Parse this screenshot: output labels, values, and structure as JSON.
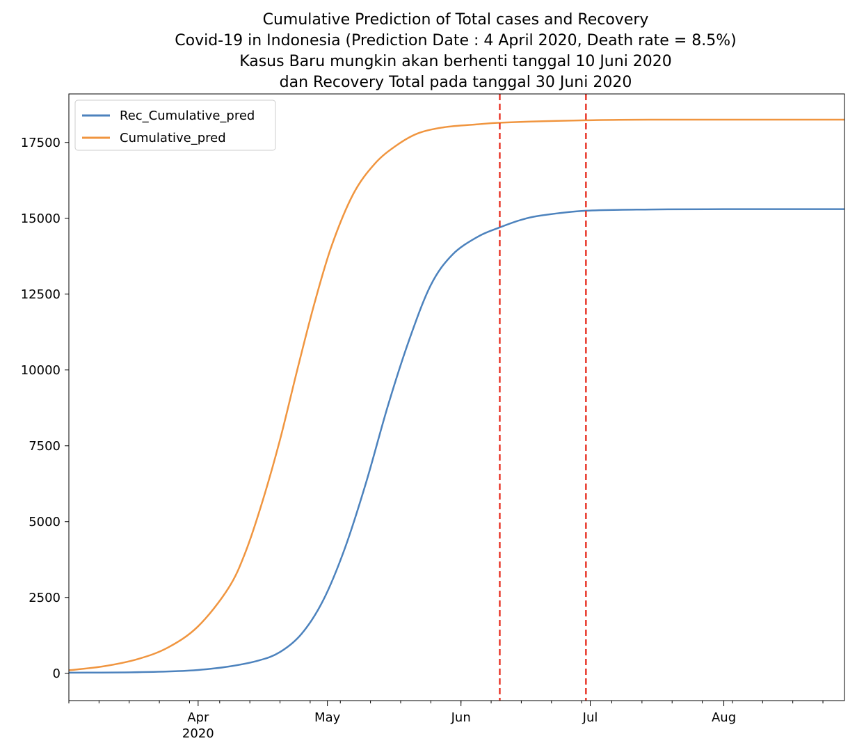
{
  "chart_data": {
    "type": "line",
    "title_lines": [
      "Cumulative Prediction of Total cases and Recovery",
      "Covid-19 in Indonesia (Prediction Date : 4 April 2020, Death rate = 8.5%)",
      "Kasus Baru mungkin akan berhenti tanggal 10 Juni 2020",
      "dan Recovery Total pada tanggal 30 Juni 2020"
    ],
    "xlabel": "",
    "ylabel": "",
    "x_range": [
      "2020-03-02",
      "2020-08-29"
    ],
    "ylim": [
      -900,
      19100
    ],
    "x_ticks": [
      {
        "date": "2020-04-01",
        "label": "Apr",
        "sublabel": "2020"
      },
      {
        "date": "2020-05-01",
        "label": "May",
        "sublabel": ""
      },
      {
        "date": "2020-06-01",
        "label": "Jun",
        "sublabel": ""
      },
      {
        "date": "2020-07-01",
        "label": "Jul",
        "sublabel": ""
      },
      {
        "date": "2020-08-01",
        "label": "Aug",
        "sublabel": ""
      }
    ],
    "y_ticks": [
      0,
      2500,
      5000,
      7500,
      10000,
      12500,
      15000,
      17500
    ],
    "grid": false,
    "legend_position": "top-left",
    "series": [
      {
        "name": "Rec_Cumulative_pred",
        "color": "#4c82bd",
        "x": [
          "2020-03-02",
          "2020-03-15",
          "2020-03-25",
          "2020-04-01",
          "2020-04-08",
          "2020-04-15",
          "2020-04-20",
          "2020-04-25",
          "2020-04-30",
          "2020-05-05",
          "2020-05-10",
          "2020-05-15",
          "2020-05-20",
          "2020-05-25",
          "2020-05-30",
          "2020-06-05",
          "2020-06-10",
          "2020-06-15",
          "2020-06-20",
          "2020-06-30",
          "2020-07-15",
          "2020-08-01",
          "2020-08-29"
        ],
        "values": [
          20,
          30,
          60,
          110,
          220,
          420,
          700,
          1300,
          2400,
          4100,
          6300,
          8800,
          11000,
          12800,
          13800,
          14400,
          14700,
          14950,
          15100,
          15250,
          15290,
          15300,
          15300
        ]
      },
      {
        "name": "Cumulative_pred",
        "color": "#f0953f",
        "x": [
          "2020-03-02",
          "2020-03-10",
          "2020-03-18",
          "2020-03-25",
          "2020-04-01",
          "2020-04-08",
          "2020-04-12",
          "2020-04-16",
          "2020-04-20",
          "2020-04-24",
          "2020-04-28",
          "2020-05-02",
          "2020-05-07",
          "2020-05-12",
          "2020-05-17",
          "2020-05-22",
          "2020-05-28",
          "2020-06-05",
          "2020-06-10",
          "2020-06-20",
          "2020-06-30",
          "2020-07-15",
          "2020-08-29"
        ],
        "values": [
          100,
          230,
          470,
          850,
          1550,
          2800,
          4000,
          5700,
          7700,
          10000,
          12200,
          14100,
          15800,
          16800,
          17400,
          17800,
          18000,
          18100,
          18150,
          18200,
          18230,
          18250,
          18250
        ]
      }
    ],
    "vlines": [
      {
        "date": "2020-06-10",
        "color": "#e8392c",
        "style": "dashed"
      },
      {
        "date": "2020-06-30",
        "color": "#e8392c",
        "style": "dashed"
      }
    ]
  }
}
